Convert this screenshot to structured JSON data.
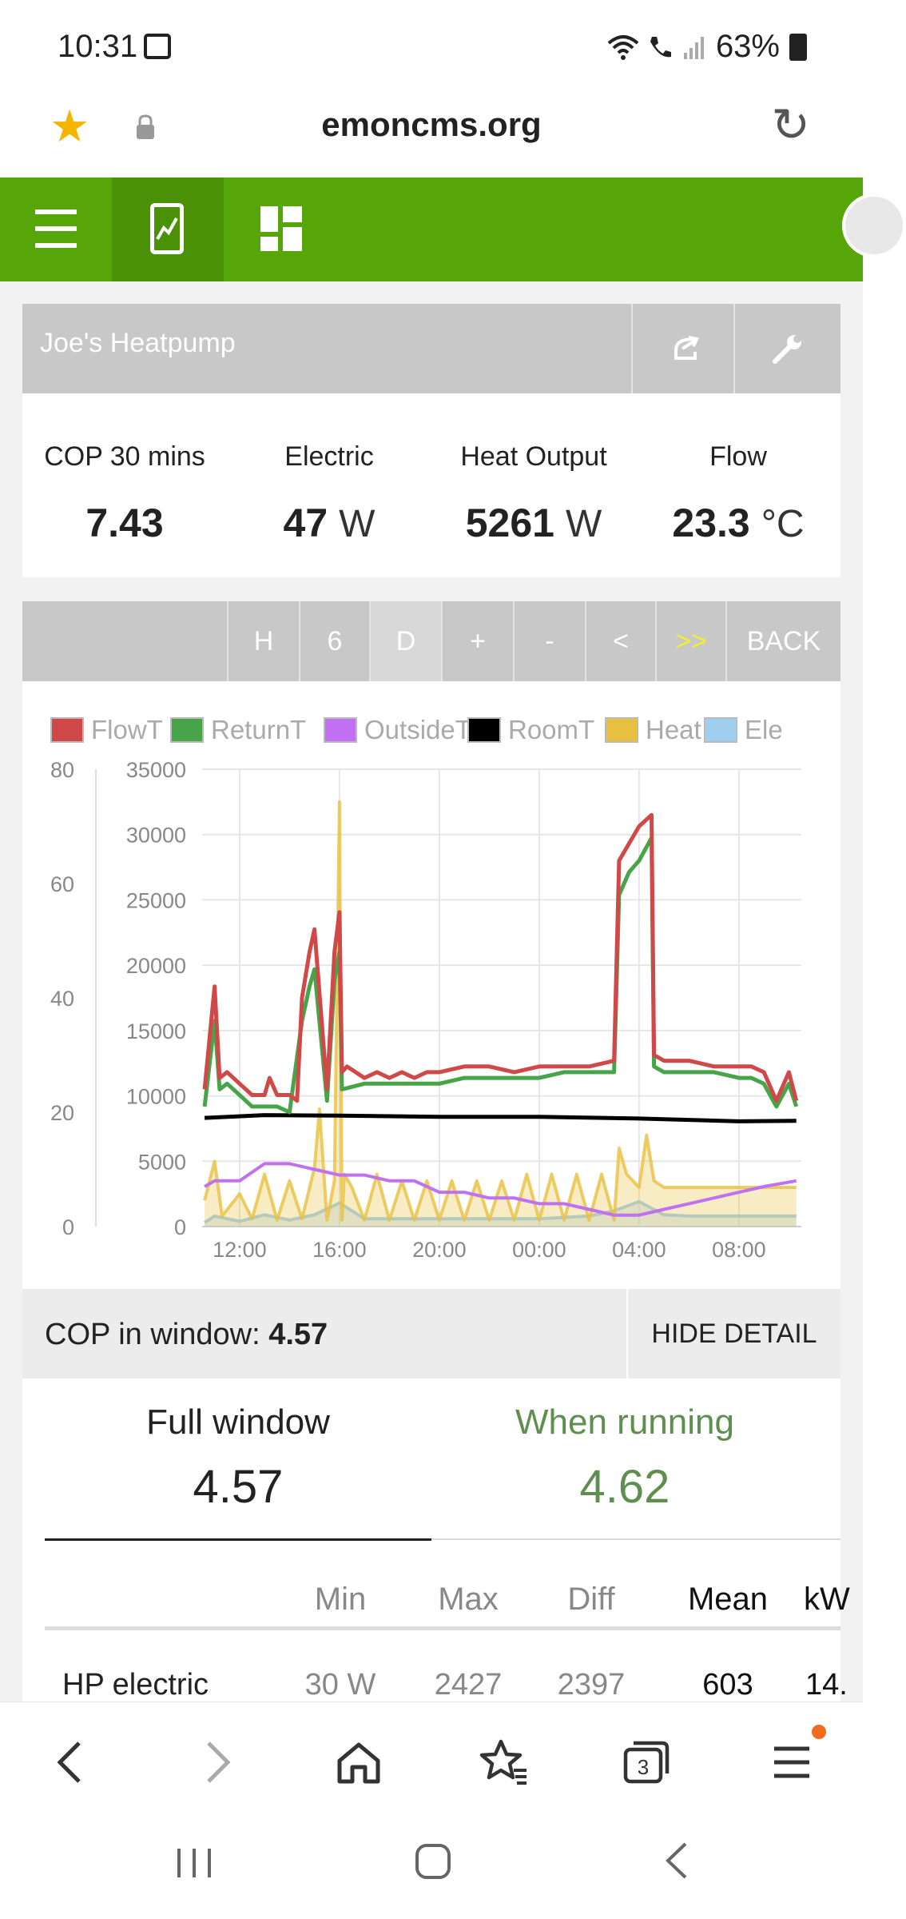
{
  "status_bar": {
    "time": "10:31",
    "battery": "63%"
  },
  "address_bar": {
    "url": "emoncms.org"
  },
  "panel": {
    "title": "Joe's Heatpump"
  },
  "stats": [
    {
      "label": "COP 30 mins",
      "value": "7.43",
      "unit": ""
    },
    {
      "label": "Electric",
      "value": "47",
      "unit": "W"
    },
    {
      "label": "Heat Output",
      "value": "5261",
      "unit": "W"
    },
    {
      "label": "Flow",
      "value": "23.3",
      "unit": "°C"
    }
  ],
  "range_buttons": [
    "H",
    "6",
    "D",
    "+",
    "-",
    "<",
    ">>",
    "BACK"
  ],
  "chart_data": {
    "type": "line",
    "title": "",
    "legend": [
      {
        "name": "FlowT",
        "color": "#d04848"
      },
      {
        "name": "ReturnT",
        "color": "#48a448"
      },
      {
        "name": "OutsideT",
        "color": "#c070f0"
      },
      {
        "name": "RoomT",
        "color": "#000000"
      },
      {
        "name": "Heat",
        "color": "#e8c040"
      },
      {
        "name": "Ele",
        "color": "#a0cff0"
      }
    ],
    "x_ticks": [
      "12:00",
      "16:00",
      "20:00",
      "00:00",
      "04:00",
      "08:00"
    ],
    "y_left_ticks": [
      "0",
      "20",
      "40",
      "60",
      "80"
    ],
    "y_right_ticks": [
      "0",
      "5000",
      "10000",
      "15000",
      "20000",
      "25000",
      "30000",
      "35000"
    ],
    "ylim_left": [
      0,
      80
    ],
    "ylim_right": [
      0,
      35000
    ],
    "xlim_hours": [
      10.5,
      34.5
    ],
    "grid": true,
    "legend_position": "top",
    "series": [
      {
        "name": "FlowT",
        "axis": "left",
        "x": [
          10.6,
          11.0,
          11.2,
          11.5,
          12.0,
          12.5,
          13.0,
          13.2,
          13.5,
          14.0,
          14.3,
          14.5,
          14.8,
          15.0,
          15.5,
          15.8,
          16.0,
          16.1,
          16.3,
          17.0,
          17.5,
          18.0,
          18.5,
          19.0,
          19.5,
          20.0,
          21.0,
          22.0,
          23.0,
          24.0,
          25.0,
          26.0,
          27.0,
          27.2,
          27.6,
          28.0,
          28.5,
          28.6,
          29.0,
          30.0,
          31.0,
          32.0,
          32.5,
          33.0,
          33.5,
          34.0,
          34.3
        ],
        "y": [
          24,
          42,
          26,
          27,
          25,
          23,
          23,
          26,
          23,
          23,
          22,
          40,
          48,
          52,
          24,
          48,
          55,
          27,
          28,
          26,
          27,
          26,
          27,
          26,
          27,
          27,
          28,
          28,
          27,
          28,
          28,
          28,
          29,
          64,
          67,
          70,
          72,
          30,
          29,
          29,
          28,
          28,
          28,
          27,
          22,
          27,
          22
        ]
      },
      {
        "name": "ReturnT",
        "axis": "left",
        "x": [
          10.6,
          11.0,
          11.2,
          11.5,
          12.0,
          12.5,
          13.0,
          13.5,
          14.0,
          14.5,
          14.8,
          15.0,
          15.5,
          15.8,
          16.0,
          16.1,
          17.0,
          18.0,
          19.0,
          20.0,
          21.0,
          22.0,
          23.0,
          24.0,
          25.0,
          26.0,
          27.0,
          27.2,
          27.6,
          28.0,
          28.5,
          28.6,
          29.0,
          30.0,
          31.0,
          32.0,
          32.5,
          33.0,
          33.5,
          34.0,
          34.3
        ],
        "y": [
          21,
          36,
          24,
          25,
          23,
          21,
          21,
          21,
          20,
          36,
          42,
          45,
          22,
          43,
          48,
          24,
          25,
          25,
          25,
          25,
          26,
          26,
          26,
          26,
          27,
          27,
          27,
          58,
          62,
          64,
          68,
          28,
          27,
          27,
          27,
          26,
          26,
          25,
          21,
          25,
          21
        ]
      },
      {
        "name": "RoomT",
        "axis": "left",
        "x": [
          10.6,
          13.0,
          16.0,
          20.0,
          24.0,
          28.0,
          32.0,
          34.3
        ],
        "y": [
          19,
          19.5,
          19.4,
          19.2,
          19.2,
          18.9,
          18.4,
          18.5
        ]
      },
      {
        "name": "OutsideT",
        "axis": "left",
        "x": [
          10.6,
          11.0,
          12.0,
          13.0,
          14.0,
          15.0,
          16.0,
          17.0,
          18.0,
          19.0,
          20.0,
          21.0,
          22.0,
          23.0,
          24.0,
          25.0,
          26.0,
          27.0,
          28.0,
          29.0,
          30.0,
          31.0,
          32.0,
          33.0,
          34.3
        ],
        "y": [
          7,
          8,
          8,
          11,
          11,
          10,
          9,
          9,
          8,
          8,
          6,
          6,
          5,
          5,
          4,
          4,
          3,
          2,
          2,
          3,
          4,
          5,
          6,
          7,
          8
        ]
      },
      {
        "name": "Heat",
        "axis": "right",
        "x": [
          10.6,
          11.0,
          11.3,
          12.0,
          12.5,
          13.0,
          13.5,
          14.0,
          14.5,
          15.0,
          15.2,
          15.5,
          15.8,
          16.0,
          16.1,
          16.2,
          16.5,
          17.0,
          17.5,
          18.0,
          18.5,
          19.0,
          19.5,
          20.0,
          20.5,
          21.0,
          21.5,
          22.0,
          22.5,
          23.0,
          23.5,
          24.0,
          24.5,
          25.0,
          25.5,
          26.0,
          26.5,
          27.0,
          27.2,
          27.5,
          28.0,
          28.3,
          28.6,
          29.0,
          30.0,
          31.0,
          32.0,
          33.0,
          34.3
        ],
        "y": [
          2000,
          5000,
          800,
          2500,
          600,
          4000,
          500,
          3500,
          600,
          4500,
          9000,
          500,
          3500,
          32500,
          500,
          4000,
          3000,
          500,
          4000,
          500,
          3500,
          500,
          3500,
          500,
          3500,
          500,
          3500,
          500,
          3500,
          500,
          4000,
          500,
          4000,
          500,
          4000,
          500,
          4000,
          500,
          6000,
          4000,
          3000,
          7000,
          3500,
          3000,
          3000,
          3000,
          3000,
          3000,
          3000
        ]
      },
      {
        "name": "Ele",
        "axis": "right",
        "x": [
          10.6,
          11.0,
          12.0,
          13.0,
          14.0,
          15.0,
          16.0,
          17.0,
          18.0,
          20.0,
          22.0,
          24.0,
          26.0,
          27.0,
          28.0,
          29.0,
          30.0,
          32.0,
          34.3
        ],
        "y": [
          300,
          800,
          400,
          900,
          500,
          900,
          1800,
          600,
          600,
          600,
          600,
          600,
          800,
          1200,
          1900,
          900,
          800,
          800,
          800
        ]
      }
    ]
  },
  "cop_window": {
    "label": "COP in window:",
    "value": "4.57",
    "hide_label": "HIDE DETAIL"
  },
  "detail": {
    "full_label": "Full window",
    "full_value": "4.57",
    "running_label": "When running",
    "running_value": "4.62",
    "headers": [
      "Min",
      "Max",
      "Diff",
      "Mean",
      "kW"
    ],
    "rows": [
      {
        "name": "HP electric",
        "min": "30 W",
        "max": "2427",
        "diff": "2397",
        "mean": "603",
        "kwh": "14."
      }
    ]
  },
  "colors": {
    "accent": "#56a60a",
    "accent_dark": "#4a9108",
    "running_green": "#5f8f4f",
    "notification": "#f26a1b"
  }
}
